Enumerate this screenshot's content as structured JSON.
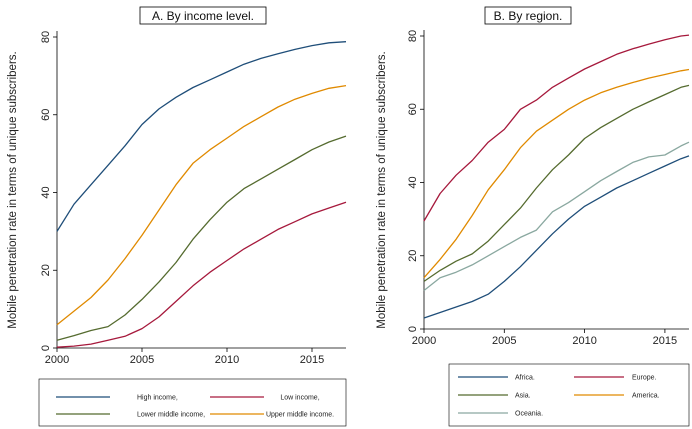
{
  "chart_data": [
    {
      "type": "line",
      "title": "A. By income level.",
      "ylabel": "Mobile penetration rate in terms of unique subscribers.",
      "xlabel": "",
      "x": [
        2000,
        2001,
        2002,
        2003,
        2004,
        2005,
        2006,
        2007,
        2008,
        2009,
        2010,
        2011,
        2012,
        2013,
        2014,
        2015,
        2016,
        2017
      ],
      "xticks": [
        2000,
        2005,
        2010,
        2015
      ],
      "yticks": [
        0,
        20,
        40,
        60,
        80
      ],
      "xlim": [
        2000,
        2017
      ],
      "ylim": [
        0,
        80
      ],
      "grid": false,
      "legend_position": "bottom",
      "series": [
        {
          "name": "High income,",
          "color": "#1f4e79",
          "values": [
            30,
            37,
            42,
            47,
            52,
            57.5,
            61.5,
            64.5,
            67,
            69,
            71,
            73,
            74.5,
            75.7,
            76.8,
            77.8,
            78.5,
            78.8
          ]
        },
        {
          "name": "Low income,",
          "color": "#a6193c",
          "values": [
            0.2,
            0.5,
            1,
            2,
            3,
            5,
            8,
            12,
            16,
            19.5,
            22.5,
            25.5,
            28,
            30.5,
            32.5,
            34.5,
            36,
            37.5
          ]
        },
        {
          "name": "Lower middle income,",
          "color": "#556b2f",
          "values": [
            2,
            3.2,
            4.5,
            5.5,
            8.5,
            12.5,
            17,
            22,
            28,
            33,
            37.5,
            41,
            43.5,
            46,
            48.5,
            51,
            53,
            54.5
          ]
        },
        {
          "name": "Upper middle income.",
          "color": "#e08a00",
          "values": [
            6,
            9.5,
            13,
            17.5,
            23,
            29,
            35.5,
            42,
            47.5,
            51,
            54,
            57,
            59.5,
            62,
            64,
            65.5,
            66.8,
            67.5
          ]
        }
      ]
    },
    {
      "type": "line",
      "title": "B. By region.",
      "ylabel": "Mobile penetration rate in terms of unique subscribers.",
      "xlabel": "",
      "x": [
        2000,
        2001,
        2002,
        2003,
        2004,
        2005,
        2006,
        2007,
        2008,
        2009,
        2010,
        2011,
        2012,
        2013,
        2014,
        2015,
        2016,
        2017
      ],
      "xticks": [
        2000,
        2005,
        2010,
        2015
      ],
      "yticks": [
        0,
        20,
        40,
        60,
        80
      ],
      "xlim": [
        2000,
        2016.5
      ],
      "ylim": [
        0,
        80
      ],
      "grid": false,
      "legend_position": "bottom",
      "series": [
        {
          "name": "Africa.",
          "color": "#1f4e79",
          "values": [
            3,
            4.5,
            6,
            7.5,
            9.5,
            13,
            17,
            21.5,
            26,
            30,
            33.5,
            36,
            38.5,
            40.5,
            42.5,
            44.5,
            46.5,
            48
          ]
        },
        {
          "name": "Europe.",
          "color": "#a6193c",
          "values": [
            29.5,
            37,
            42,
            46,
            51,
            54.5,
            60,
            62.5,
            66,
            68.5,
            71,
            73,
            75,
            76.5,
            77.8,
            79,
            80,
            80.5
          ]
        },
        {
          "name": "Asia.",
          "color": "#556b2f",
          "values": [
            13,
            16,
            18.5,
            20.5,
            24,
            28.5,
            33,
            38.5,
            43.5,
            47.5,
            52,
            55,
            57.5,
            60,
            62,
            64,
            66,
            67
          ]
        },
        {
          "name": "America.",
          "color": "#e08a00",
          "values": [
            14,
            19,
            24.5,
            31,
            38,
            43.5,
            49.5,
            54,
            57,
            60,
            62.5,
            64.5,
            66,
            67.3,
            68.5,
            69.5,
            70.5,
            71.2
          ]
        },
        {
          "name": "Oceania.",
          "color": "#8aa8a0",
          "values": [
            10.5,
            14,
            15.5,
            17.5,
            20,
            22.5,
            25,
            27,
            32,
            34.5,
            37.5,
            40.5,
            43,
            45.5,
            47,
            47.5,
            50,
            52
          ]
        }
      ]
    }
  ]
}
